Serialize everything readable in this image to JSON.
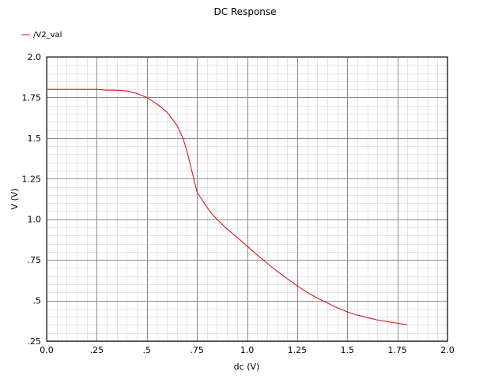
{
  "chart_data": {
    "type": "line",
    "title": "DC Response",
    "xlabel": "dc (V)",
    "ylabel": "V (V)",
    "xlim": [
      0.0,
      2.0
    ],
    "ylim": [
      0.25,
      2.0
    ],
    "x_ticks": [
      {
        "value": 0.0,
        "label": "0.0"
      },
      {
        "value": 0.25,
        "label": ".25"
      },
      {
        "value": 0.5,
        "label": ".5"
      },
      {
        "value": 0.75,
        "label": ".75"
      },
      {
        "value": 1.0,
        "label": "1.0"
      },
      {
        "value": 1.25,
        "label": "1.25"
      },
      {
        "value": 1.5,
        "label": "1.5"
      },
      {
        "value": 1.75,
        "label": "1.75"
      },
      {
        "value": 2.0,
        "label": "2.0"
      }
    ],
    "y_ticks": [
      {
        "value": 0.25,
        "label": ".25"
      },
      {
        "value": 0.5,
        "label": ".5"
      },
      {
        "value": 0.75,
        "label": ".75"
      },
      {
        "value": 1.0,
        "label": "1.0"
      },
      {
        "value": 1.25,
        "label": "1.25"
      },
      {
        "value": 1.5,
        "label": "1.5"
      },
      {
        "value": 1.75,
        "label": "1.75"
      },
      {
        "value": 2.0,
        "label": "2.0"
      }
    ],
    "grid": true,
    "legend_position": "top-left",
    "series": [
      {
        "name": "/V2_val",
        "color": "#e01818",
        "points": [
          [
            0.0,
            1.8
          ],
          [
            0.1,
            1.8
          ],
          [
            0.2,
            1.8
          ],
          [
            0.25,
            1.8
          ],
          [
            0.3,
            1.795
          ],
          [
            0.35,
            1.795
          ],
          [
            0.4,
            1.79
          ],
          [
            0.45,
            1.775
          ],
          [
            0.5,
            1.75
          ],
          [
            0.55,
            1.71
          ],
          [
            0.6,
            1.66
          ],
          [
            0.65,
            1.58
          ],
          [
            0.68,
            1.5
          ],
          [
            0.7,
            1.42
          ],
          [
            0.72,
            1.32
          ],
          [
            0.74,
            1.22
          ],
          [
            0.75,
            1.17
          ],
          [
            0.78,
            1.11
          ],
          [
            0.82,
            1.04
          ],
          [
            0.85,
            1.0
          ],
          [
            0.9,
            0.94
          ],
          [
            0.95,
            0.89
          ],
          [
            1.0,
            0.835
          ],
          [
            1.05,
            0.78
          ],
          [
            1.1,
            0.73
          ],
          [
            1.15,
            0.68
          ],
          [
            1.2,
            0.635
          ],
          [
            1.25,
            0.59
          ],
          [
            1.3,
            0.55
          ],
          [
            1.35,
            0.515
          ],
          [
            1.4,
            0.485
          ],
          [
            1.45,
            0.455
          ],
          [
            1.5,
            0.43
          ],
          [
            1.55,
            0.41
          ],
          [
            1.6,
            0.395
          ],
          [
            1.65,
            0.38
          ],
          [
            1.7,
            0.37
          ],
          [
            1.75,
            0.36
          ],
          [
            1.8,
            0.35
          ]
        ]
      }
    ]
  }
}
